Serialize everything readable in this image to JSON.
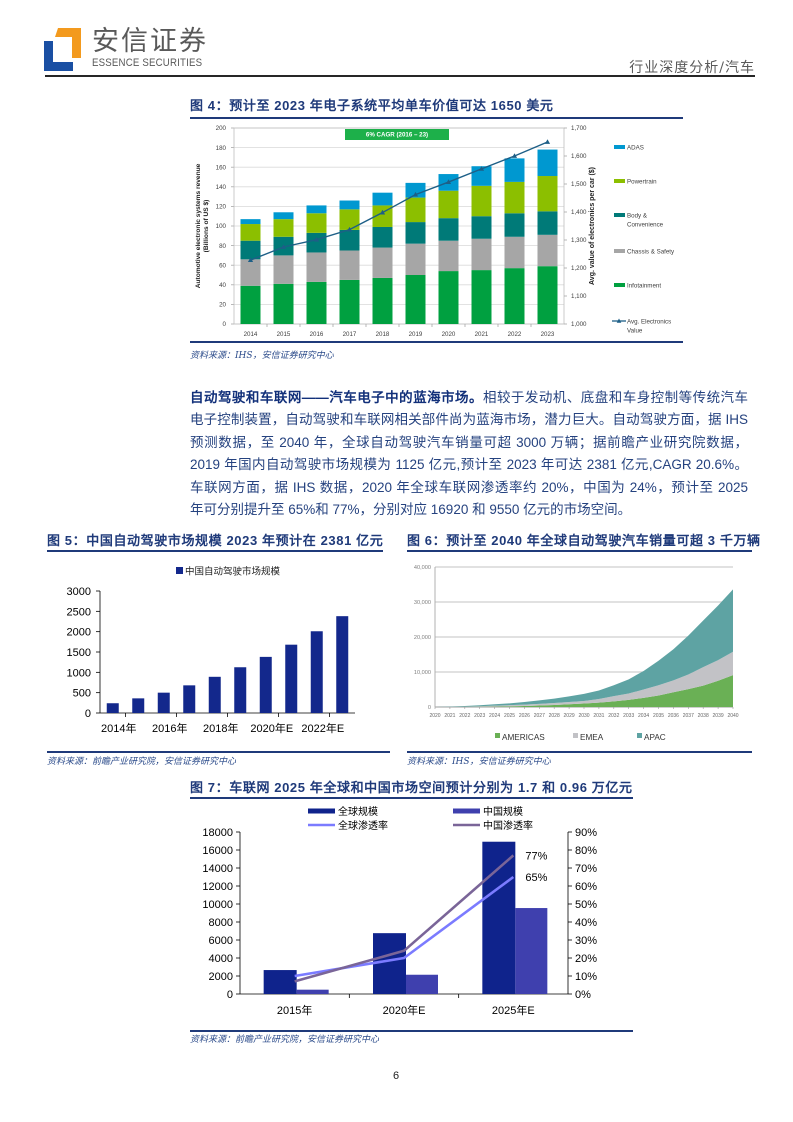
{
  "header": {
    "logo_cn": "安信证券",
    "logo_en": "ESSENCE SECURITIES",
    "section": "行业深度分析/汽车"
  },
  "figures": {
    "fig4": {
      "title": "图 4：预计至 2023 年电子系统平均单车价值可达 1650 美元",
      "source": "资料来源：IHS，安信证券研究中心"
    },
    "fig5": {
      "title": "图 5：中国自动驾驶市场规模 2023 年预计在 2381 亿元",
      "source": "资料来源：前瞻产业研究院，安信证券研究中心"
    },
    "fig6": {
      "title": "图 6：预计至 2040 年全球自动驾驶汽车销量可超 3 千万辆",
      "source": "资料来源：IHS，安信证券研究中心"
    },
    "fig7": {
      "title": "图 7：车联网 2025 年全球和中国市场空间预计分别为 1.7 和 0.96 万亿元",
      "source": "资料来源：前瞻产业研究院，安信证券研究中心"
    }
  },
  "paragraph": {
    "lead": "自动驾驶和车联网——汽车电子中的蓝海市场。",
    "lines": [
      "相较于发动机、底盘和车身控制等传统汽车",
      "电子控制装置，自动驾驶和车联网相关部件尚为蓝海市场，潜力巨大。自动驾驶方面，据 IHS",
      "预测数据，至 2040 年，全球自动驾驶汽车销量可超 3000 万辆；据前瞻产业研究院数据，",
      "2019 年国内自动驾驶市场规模为 1125 亿元,预计至 2023 年可达 2381 亿元,CAGR 20.6%。",
      "车联网方面，据 IHS 数据，2020 年全球车联网渗透率约 20%，中国为 24%，预计至 2025",
      "年可分别提升至 65%和 77%，分别对应 16920 和 9550 亿元的市场空间。"
    ]
  },
  "page_number": "6",
  "colors": {
    "title_navy": "#1f3a7a",
    "logo_blue": "#1a4fa3",
    "logo_orange": "#f39a1e"
  },
  "chart_data": [
    {
      "id": "fig4",
      "type": "bar",
      "stacked": true,
      "title": "预计至 2023 年电子系统平均单车价值可达 1650 美元",
      "categories": [
        "2014",
        "2015",
        "2016",
        "2017",
        "2018",
        "2019",
        "2020",
        "2021",
        "2022",
        "2023"
      ],
      "series": [
        {
          "name": "Infotainment",
          "color": "#00a040",
          "values": [
            39,
            41,
            43,
            45,
            47,
            50,
            54,
            55,
            57,
            59
          ]
        },
        {
          "name": "Chassis & Safety",
          "color": "#a6a6a6",
          "values": [
            27,
            29,
            30,
            30,
            31,
            32,
            31,
            32,
            32,
            32
          ]
        },
        {
          "name": "Body & Convenience",
          "color": "#007a78",
          "values": [
            19,
            19,
            20,
            21,
            21,
            22,
            23,
            23,
            24,
            24
          ]
        },
        {
          "name": "Powertrain",
          "color": "#8cbf00",
          "values": [
            17,
            18,
            20,
            21,
            22,
            25,
            28,
            31,
            32,
            36
          ]
        },
        {
          "name": "ADAS",
          "color": "#0098d0",
          "values": [
            5,
            7,
            8,
            9,
            13,
            15,
            17,
            20,
            24,
            27
          ]
        }
      ],
      "line_series": {
        "name": "Avg. Electronics Value",
        "axis": "right",
        "color": "#1d5f87",
        "values": [
          1228,
          1275,
          1301,
          1337,
          1398,
          1462,
          1507,
          1554,
          1600,
          1650
        ]
      },
      "ylabel_lines": [
        "Automotive electronic systems revenue",
        "(Billions of US $)"
      ],
      "y2label": "Avg. value of electronics per car ($)",
      "ylim": [
        0,
        200
      ],
      "yticks": [
        0,
        20,
        40,
        60,
        80,
        100,
        120,
        140,
        160,
        180,
        200
      ],
      "y2lim": [
        1000,
        1700
      ],
      "y2ticks": [
        1000,
        1100,
        1200,
        1300,
        1400,
        1500,
        1600,
        1700
      ],
      "y2tick_labels": [
        "1,000",
        "1,100",
        "1,200",
        "1,300",
        "1,400",
        "1,500",
        "1,600",
        "1,700"
      ],
      "annotation": {
        "text": "6% CAGR (2016 – 23)",
        "color": "#1db04a"
      },
      "legend": [
        {
          "label_lines": [
            "ADAS"
          ],
          "series": "ADAS"
        },
        {
          "label_lines": [
            "Powertrain"
          ],
          "series": "Powertrain"
        },
        {
          "label_lines": [
            "Body &",
            "Convenience"
          ],
          "series": "Body & Convenience"
        },
        {
          "label_lines": [
            "Chassis & Safety"
          ],
          "series": "Chassis & Safety"
        },
        {
          "label_lines": [
            "Infotainment"
          ],
          "series": "Infotainment"
        },
        {
          "label_lines": [
            "Avg. Electronics",
            "Value"
          ],
          "series": "line"
        }
      ],
      "legend_position": "right",
      "grid": true
    },
    {
      "id": "fig5",
      "type": "bar",
      "title": "中国自动驾驶市场规模 2023 年预计在 2381 亿元",
      "categories": [
        "2014年",
        "2015年",
        "2016年",
        "2017年",
        "2018年",
        "2019年",
        "2020年E",
        "2021年E",
        "2022年E",
        "2023年E"
      ],
      "tick_labels_shown": [
        {
          "index": 0,
          "label": "2014年"
        },
        {
          "index": 2,
          "label": "2016年"
        },
        {
          "index": 4,
          "label": "2018年"
        },
        {
          "index": 6,
          "label": "2020年E"
        },
        {
          "index": 8,
          "label": "2022年E"
        }
      ],
      "series": [
        {
          "name": "中国自动驾驶市场规模",
          "color": "#13288c",
          "values": [
            240,
            360,
            500,
            680,
            890,
            1125,
            1380,
            1680,
            2010,
            2381
          ]
        }
      ],
      "xlabel": "",
      "ylabel": "",
      "ylim": [
        0,
        3000
      ],
      "yticks": [
        0,
        500,
        1000,
        1500,
        2000,
        2500,
        3000
      ],
      "legend_position": "top",
      "grid": false
    },
    {
      "id": "fig6",
      "type": "area",
      "stacked": true,
      "title": "预计至 2040 年全球自动驾驶汽车销量可超 3 千万辆",
      "x": [
        "2020",
        "2021",
        "2022",
        "2023",
        "2024",
        "2025",
        "2026",
        "2027",
        "2028",
        "2029",
        "2030",
        "2031",
        "2032",
        "2033",
        "2034",
        "2035",
        "2036",
        "2037",
        "2038",
        "2039",
        "2040"
      ],
      "series": [
        {
          "name": "AMERICAS",
          "color": "#6ab055",
          "values": [
            0,
            10,
            30,
            60,
            100,
            170,
            280,
            420,
            580,
            770,
            1000,
            1250,
            1600,
            2050,
            2600,
            3300,
            4200,
            5100,
            6100,
            7500,
            9100
          ]
        },
        {
          "name": "EMEA",
          "color": "#c2c2c6",
          "values": [
            0,
            30,
            70,
            140,
            280,
            350,
            390,
            480,
            570,
            650,
            730,
            1050,
            1500,
            1800,
            2400,
            2900,
            3400,
            4200,
            5300,
            5900,
            6700
          ]
        },
        {
          "name": "APAC",
          "color": "#5ea3a3",
          "values": [
            0,
            60,
            190,
            300,
            390,
            530,
            770,
            1000,
            1250,
            1630,
            2020,
            2400,
            3100,
            4050,
            5300,
            7000,
            8900,
            11100,
            13300,
            15600,
            17800
          ]
        }
      ],
      "ylim": [
        0,
        40000
      ],
      "yticks": [
        0,
        10000,
        20000,
        30000,
        40000
      ],
      "ytick_labels": [
        "0",
        "10,000",
        "20,000",
        "30,000",
        "40,000"
      ],
      "legend_position": "bottom",
      "grid": true
    },
    {
      "id": "fig7",
      "type": "bar",
      "title": "车联网 2025 年全球和中国市场空间预计分别为 1.7 和 0.96 万亿元",
      "categories": [
        "2015年",
        "2020年E",
        "2025年E"
      ],
      "series": [
        {
          "name": "全球规模",
          "color": "#0f238c",
          "values": [
            2660,
            6760,
            16920
          ]
        },
        {
          "name": "中国规模",
          "color": "#3f40ae",
          "values": [
            480,
            2140,
            9550
          ]
        }
      ],
      "line_series": [
        {
          "name": "全球渗透率",
          "axis": "right",
          "color": "#7b7bff",
          "values": [
            10,
            20,
            65
          ]
        },
        {
          "name": "中国渗透率",
          "axis": "right",
          "color": "#7a6598",
          "values": [
            7,
            24,
            77
          ]
        }
      ],
      "data_labels": [
        {
          "series": "中国渗透率",
          "index": 2,
          "text": "77%"
        },
        {
          "series": "全球渗透率",
          "index": 2,
          "text": "65%"
        }
      ],
      "ylim": [
        0,
        18000
      ],
      "yticks": [
        0,
        2000,
        4000,
        6000,
        8000,
        10000,
        12000,
        14000,
        16000,
        18000
      ],
      "y2lim": [
        0,
        90
      ],
      "y2ticks": [
        0,
        10,
        20,
        30,
        40,
        50,
        60,
        70,
        80,
        90
      ],
      "y2tick_labels": [
        "0%",
        "10%",
        "20%",
        "30%",
        "40%",
        "50%",
        "60%",
        "70%",
        "80%",
        "90%"
      ],
      "legend_position": "top",
      "grid": false
    }
  ]
}
